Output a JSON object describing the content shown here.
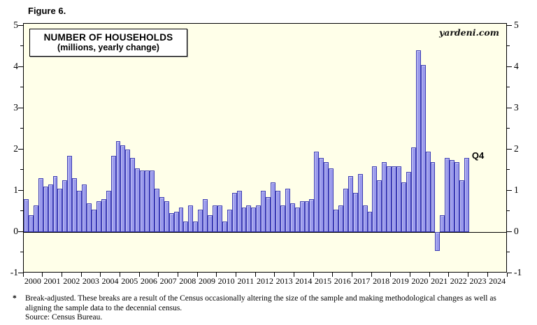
{
  "figure_label": "Figure 6.",
  "watermark": "yardeni.com",
  "chart_data": {
    "type": "bar",
    "title": "NUMBER OF HOUSEHOLDS",
    "subtitle": "(millions, yearly change)",
    "legend": "none",
    "grid": "zero-line-only",
    "plot_background": "#FFFFE9",
    "colors": {
      "bar_fill": "#9A9AEC",
      "bar_border": "#3C3CB4",
      "axis": "#000000"
    },
    "y_axis": {
      "min": -1,
      "max": 5,
      "major_tick_step": 1,
      "minor_tick_step": 0.5,
      "sides": "both",
      "labels": [
        "-1",
        "0",
        "1",
        "2",
        "3",
        "4",
        "5"
      ]
    },
    "x_axis": {
      "year_labels": [
        "2000",
        "2001",
        "2002",
        "2003",
        "2004",
        "2005",
        "2006",
        "2007",
        "2008",
        "2009",
        "2010",
        "2011",
        "2012",
        "2013",
        "2014",
        "2015",
        "2016",
        "2017",
        "2018",
        "2019",
        "2020",
        "2021",
        "2022",
        "2023",
        "2024"
      ]
    },
    "last_point_label": "Q4",
    "series_note": "quarterly bars, yearly change in millions, 2000Q1-2022Q4",
    "series": [
      {
        "year": 2000,
        "values": [
          0.8,
          0.4,
          0.65,
          1.3
        ]
      },
      {
        "year": 2001,
        "values": [
          1.1,
          1.15,
          1.35,
          1.05
        ]
      },
      {
        "year": 2002,
        "values": [
          1.25,
          1.85,
          1.3,
          1.0
        ]
      },
      {
        "year": 2003,
        "values": [
          1.15,
          0.7,
          0.55,
          0.75
        ]
      },
      {
        "year": 2004,
        "values": [
          0.8,
          1.0,
          1.85,
          2.2
        ]
      },
      {
        "year": 2005,
        "values": [
          2.1,
          2.0,
          1.8,
          1.55
        ]
      },
      {
        "year": 2006,
        "values": [
          1.5,
          1.5,
          1.5,
          1.05
        ]
      },
      {
        "year": 2007,
        "values": [
          0.85,
          0.75,
          0.45,
          0.5
        ]
      },
      {
        "year": 2008,
        "values": [
          0.6,
          0.25,
          0.65,
          0.25
        ]
      },
      {
        "year": 2009,
        "values": [
          0.55,
          0.8,
          0.4,
          0.65
        ]
      },
      {
        "year": 2010,
        "values": [
          0.65,
          0.25,
          0.55,
          0.95
        ]
      },
      {
        "year": 2011,
        "values": [
          1.0,
          0.6,
          0.65,
          0.6
        ]
      },
      {
        "year": 2012,
        "values": [
          0.65,
          1.0,
          0.85,
          1.2
        ]
      },
      {
        "year": 2013,
        "values": [
          1.0,
          0.65,
          1.05,
          0.7
        ]
      },
      {
        "year": 2014,
        "values": [
          0.6,
          0.75,
          0.75,
          0.8
        ]
      },
      {
        "year": 2015,
        "values": [
          1.95,
          1.8,
          1.7,
          1.55
        ]
      },
      {
        "year": 2016,
        "values": [
          0.55,
          0.65,
          1.05,
          1.35
        ]
      },
      {
        "year": 2017,
        "values": [
          0.95,
          1.4,
          0.65,
          0.5
        ]
      },
      {
        "year": 2018,
        "values": [
          1.6,
          1.25,
          1.7,
          1.6
        ]
      },
      {
        "year": 2019,
        "values": [
          1.6,
          1.6,
          1.2,
          1.45
        ]
      },
      {
        "year": 2020,
        "values": [
          2.05,
          4.4,
          4.05,
          1.95
        ]
      },
      {
        "year": 2021,
        "values": [
          1.7,
          -0.45,
          0.4,
          1.8
        ]
      },
      {
        "year": 2022,
        "values": [
          1.75,
          1.7,
          1.25,
          1.8
        ]
      }
    ]
  },
  "footnote": {
    "marker": "*",
    "line1": "Break-adjusted. These breaks are a result of the Census occasionally altering the size of the sample and making methodological changes as well as",
    "line2": "aligning the sample data to the decennial census.",
    "source": "Source: Census Bureau."
  }
}
